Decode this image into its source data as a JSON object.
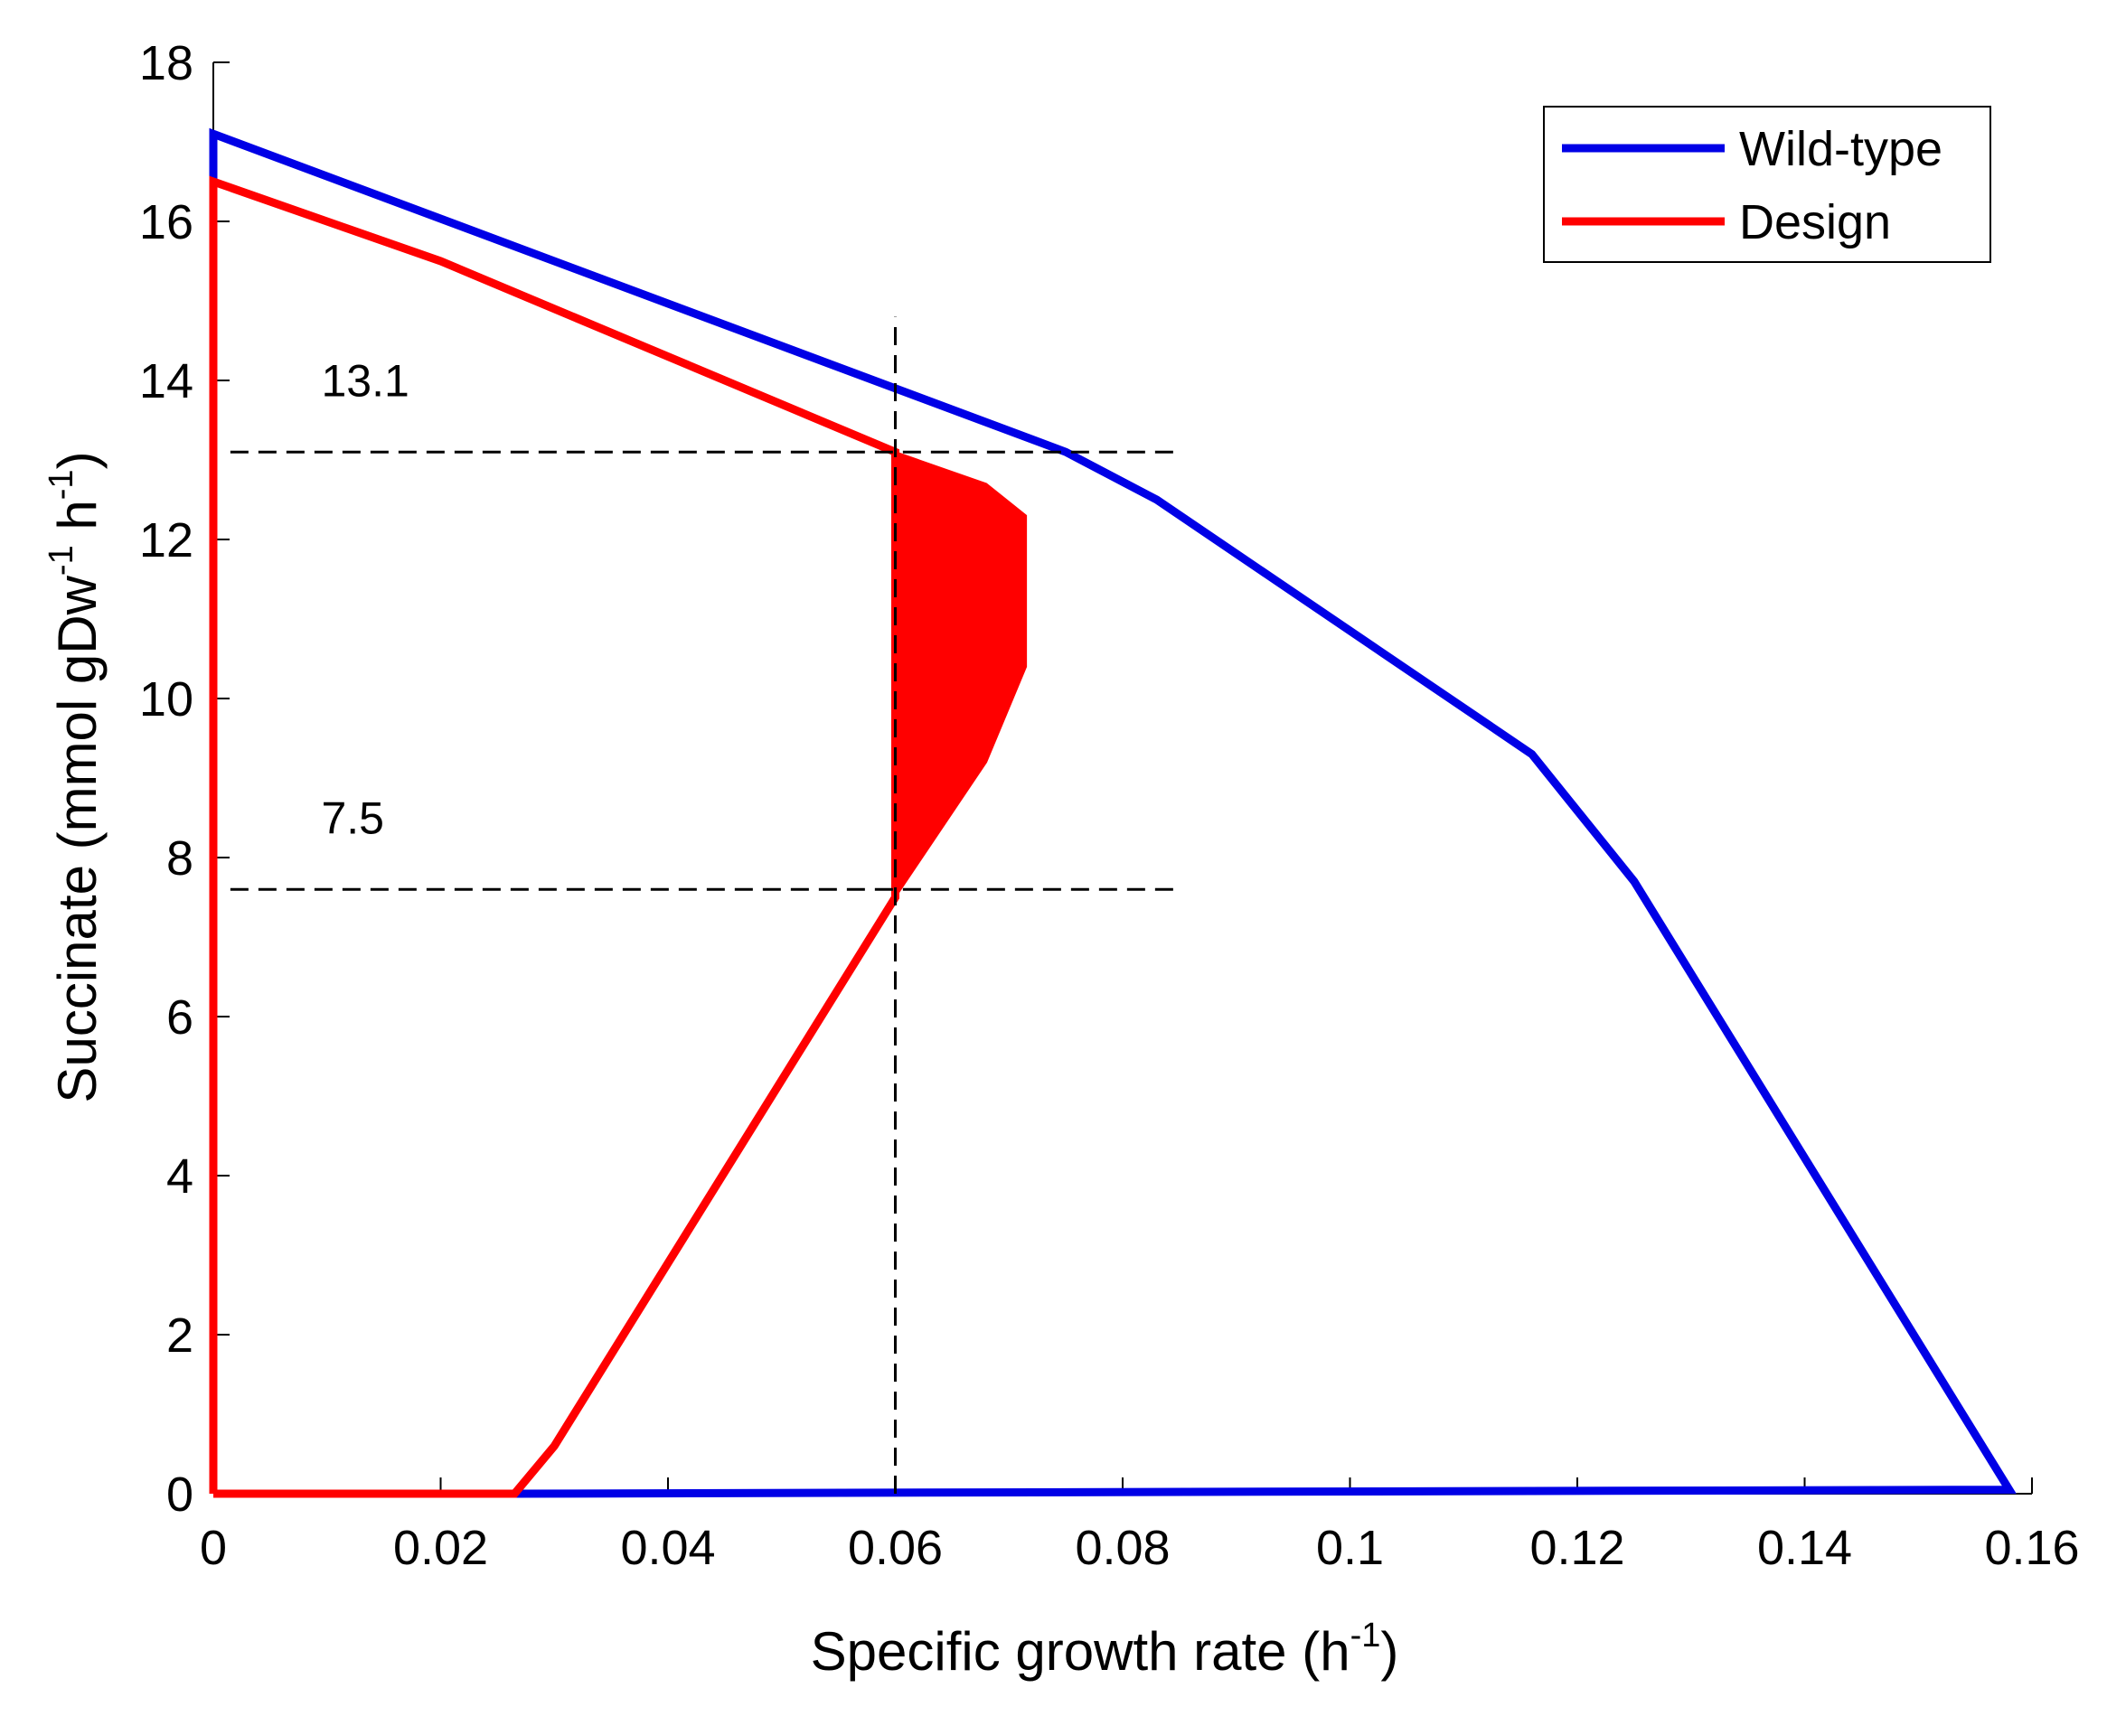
{
  "chart_data": {
    "type": "line",
    "title": "",
    "xlabel": {
      "prefix": "Specific growth rate (h",
      "sup": "-1",
      "suffix": ")"
    },
    "ylabel": {
      "prefix": "Succinate (mmol gDw",
      "sup1": "-1",
      "mid": " h",
      "sup2": "-1",
      "suffix": ")"
    },
    "xlim": [
      0,
      0.16
    ],
    "ylim": [
      0,
      18
    ],
    "xticks": [
      0,
      0.02,
      0.04,
      0.06,
      0.08,
      0.1,
      0.12,
      0.14,
      0.16
    ],
    "xtick_labels": [
      "0",
      "0.02",
      "0.04",
      "0.06",
      "0.08",
      "0.1",
      "0.12",
      "0.14",
      "0.16"
    ],
    "yticks": [
      0,
      2,
      4,
      6,
      8,
      10,
      12,
      14,
      16,
      18
    ],
    "ytick_labels": [
      "0",
      "2",
      "4",
      "6",
      "8",
      "10",
      "12",
      "14",
      "16",
      "18"
    ],
    "legend_position": "top-right",
    "series": [
      {
        "name": "Wild-type",
        "color": "#0000e6",
        "points": [
          [
            0,
            0
          ],
          [
            0,
            17.1
          ],
          [
            0.075,
            13.1
          ],
          [
            0.083,
            12.5
          ],
          [
            0.116,
            9.3
          ],
          [
            0.125,
            7.7
          ],
          [
            0.158,
            0.05
          ],
          [
            0.0265,
            0
          ],
          [
            0,
            0
          ]
        ]
      },
      {
        "name": "Design",
        "color": "#ff0000",
        "points": [
          [
            0,
            0
          ],
          [
            0,
            16.5
          ],
          [
            0.02,
            15.5
          ],
          [
            0.06,
            13.1
          ],
          [
            0.06,
            7.5
          ],
          [
            0.03,
            0.6
          ],
          [
            0.0265,
            0
          ],
          [
            0,
            0
          ]
        ]
      }
    ],
    "shaded_region": {
      "color": "#ff0000",
      "points": [
        [
          0.06,
          13.1
        ],
        [
          0.068,
          12.7
        ],
        [
          0.0715,
          12.3
        ],
        [
          0.0715,
          10.4
        ],
        [
          0.068,
          9.2
        ],
        [
          0.06,
          7.5
        ]
      ]
    },
    "reference_lines": [
      {
        "orientation": "vertical",
        "x": 0.06,
        "y_from": 0,
        "y_to": 14.8
      },
      {
        "orientation": "horizontal",
        "y": 13.1,
        "x_from": 0.0015,
        "x_to": 0.085
      },
      {
        "orientation": "horizontal",
        "y": 7.6,
        "x_from": 0.0015,
        "x_to": 0.085
      }
    ],
    "annotations": [
      {
        "text": "13.1",
        "x": 0.0095,
        "y": 13.8
      },
      {
        "text": "7.5",
        "x": 0.0095,
        "y": 8.3
      }
    ]
  }
}
